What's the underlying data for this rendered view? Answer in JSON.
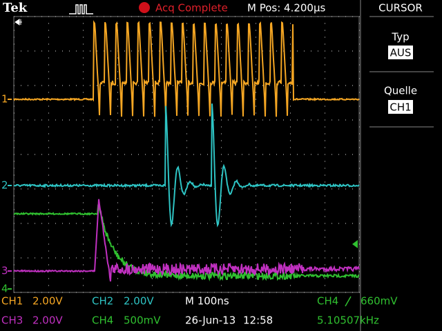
{
  "header": {
    "brand": "Tek",
    "status": "Acq Complete",
    "position": "M Pos: 4.200µs"
  },
  "menu": {
    "title": "CURSOR",
    "items": [
      {
        "label": "Typ",
        "value": "AUS"
      },
      {
        "label": "Quelle",
        "value": "CH1"
      }
    ]
  },
  "channel_markers": [
    "1",
    "2",
    "3",
    "4"
  ],
  "readouts": [
    {
      "channel": "CH1",
      "scale": "2.00V"
    },
    {
      "channel": "CH2",
      "scale": "2.00V"
    },
    {
      "channel": "CH3",
      "scale": "2.00V"
    },
    {
      "channel": "CH4",
      "scale": "500mV"
    }
  ],
  "timebase": "M 100ns",
  "trigger": {
    "source": "CH4",
    "level": "660mV"
  },
  "date": "26-Jun-13",
  "time": "12:58",
  "frequency": "5.10507kHz"
}
